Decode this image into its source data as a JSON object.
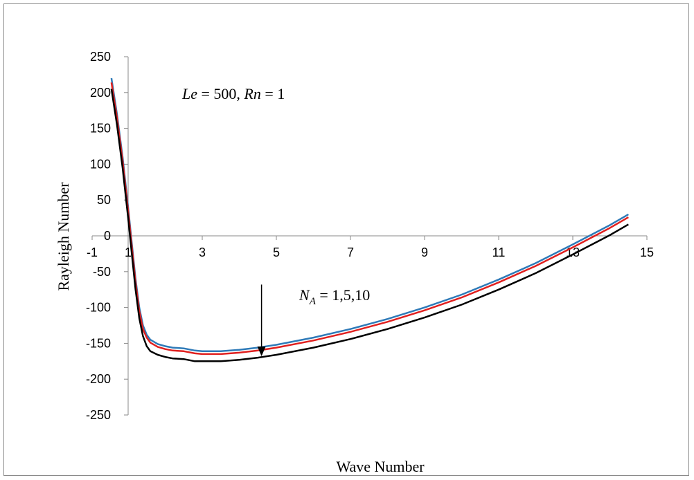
{
  "chart_data": {
    "type": "line",
    "xlabel": "Wave Number",
    "ylabel": "Rayleigh Number",
    "xlim": [
      -1,
      15
    ],
    "ylim": [
      -250,
      250
    ],
    "x_ticks": [
      -1,
      1,
      3,
      5,
      7,
      9,
      11,
      13,
      15
    ],
    "y_ticks": [
      250,
      200,
      150,
      100,
      50,
      0,
      -50,
      -100,
      -150,
      -200,
      -250
    ],
    "grid": false,
    "legend": "none",
    "annotations": [
      {
        "id": "params",
        "parts": [
          {
            "text": "Le",
            "italic": true
          },
          {
            "text": " = 500, ",
            "italic": false
          },
          {
            "text": "Rn",
            "italic": true
          },
          {
            "text": " = 1",
            "italic": false
          }
        ]
      },
      {
        "id": "na",
        "base": "N",
        "sub": "A",
        "rest": " = 1,5,10",
        "arrow": {
          "x": 4.6,
          "y_from": -68,
          "y_to": -168
        }
      }
    ],
    "series": [
      {
        "color": "#2e7ab8",
        "width": 2.5,
        "points": [
          [
            0.55,
            220
          ],
          [
            0.7,
            170
          ],
          [
            0.85,
            110
          ],
          [
            1.0,
            40
          ],
          [
            1.1,
            -10
          ],
          [
            1.2,
            -60
          ],
          [
            1.3,
            -100
          ],
          [
            1.4,
            -125
          ],
          [
            1.5,
            -138
          ],
          [
            1.6,
            -145
          ],
          [
            1.8,
            -151
          ],
          [
            2.0,
            -154
          ],
          [
            2.2,
            -156
          ],
          [
            2.5,
            -157
          ],
          [
            2.8,
            -160
          ],
          [
            3.0,
            -161
          ],
          [
            3.5,
            -161
          ],
          [
            4.0,
            -159
          ],
          [
            4.5,
            -156
          ],
          [
            5.0,
            -152
          ],
          [
            6.0,
            -142
          ],
          [
            7.0,
            -130
          ],
          [
            8.0,
            -116
          ],
          [
            9.0,
            -100
          ],
          [
            10.0,
            -82
          ],
          [
            11.0,
            -61
          ],
          [
            12.0,
            -38
          ],
          [
            13.0,
            -12
          ],
          [
            14.0,
            15
          ],
          [
            14.5,
            30
          ]
        ]
      },
      {
        "color": "#e0201f",
        "width": 2.5,
        "points": [
          [
            0.55,
            214
          ],
          [
            0.7,
            165
          ],
          [
            0.85,
            105
          ],
          [
            1.0,
            35
          ],
          [
            1.1,
            -15
          ],
          [
            1.2,
            -65
          ],
          [
            1.3,
            -105
          ],
          [
            1.4,
            -130
          ],
          [
            1.5,
            -142
          ],
          [
            1.6,
            -149
          ],
          [
            1.8,
            -155
          ],
          [
            2.0,
            -158
          ],
          [
            2.2,
            -160
          ],
          [
            2.5,
            -161
          ],
          [
            2.8,
            -164
          ],
          [
            3.0,
            -165
          ],
          [
            3.5,
            -165
          ],
          [
            4.0,
            -163
          ],
          [
            4.5,
            -160
          ],
          [
            5.0,
            -156
          ],
          [
            6.0,
            -146
          ],
          [
            7.0,
            -134
          ],
          [
            8.0,
            -120
          ],
          [
            9.0,
            -104
          ],
          [
            10.0,
            -86
          ],
          [
            11.0,
            -65
          ],
          [
            12.0,
            -42
          ],
          [
            13.0,
            -16
          ],
          [
            14.0,
            11
          ],
          [
            14.5,
            26
          ]
        ]
      },
      {
        "color": "#000000",
        "width": 2.5,
        "points": [
          [
            0.55,
            205
          ],
          [
            0.7,
            155
          ],
          [
            0.85,
            95
          ],
          [
            1.0,
            25
          ],
          [
            1.1,
            -25
          ],
          [
            1.2,
            -75
          ],
          [
            1.3,
            -115
          ],
          [
            1.4,
            -140
          ],
          [
            1.5,
            -154
          ],
          [
            1.6,
            -161
          ],
          [
            1.8,
            -166
          ],
          [
            2.0,
            -169
          ],
          [
            2.2,
            -171
          ],
          [
            2.5,
            -172
          ],
          [
            2.8,
            -175
          ],
          [
            3.0,
            -175
          ],
          [
            3.5,
            -175
          ],
          [
            4.0,
            -173
          ],
          [
            4.5,
            -170
          ],
          [
            5.0,
            -166
          ],
          [
            6.0,
            -156
          ],
          [
            7.0,
            -144
          ],
          [
            8.0,
            -130
          ],
          [
            9.0,
            -114
          ],
          [
            10.0,
            -96
          ],
          [
            11.0,
            -75
          ],
          [
            12.0,
            -52
          ],
          [
            13.0,
            -26
          ],
          [
            14.0,
            1
          ],
          [
            14.5,
            16
          ]
        ]
      }
    ]
  }
}
